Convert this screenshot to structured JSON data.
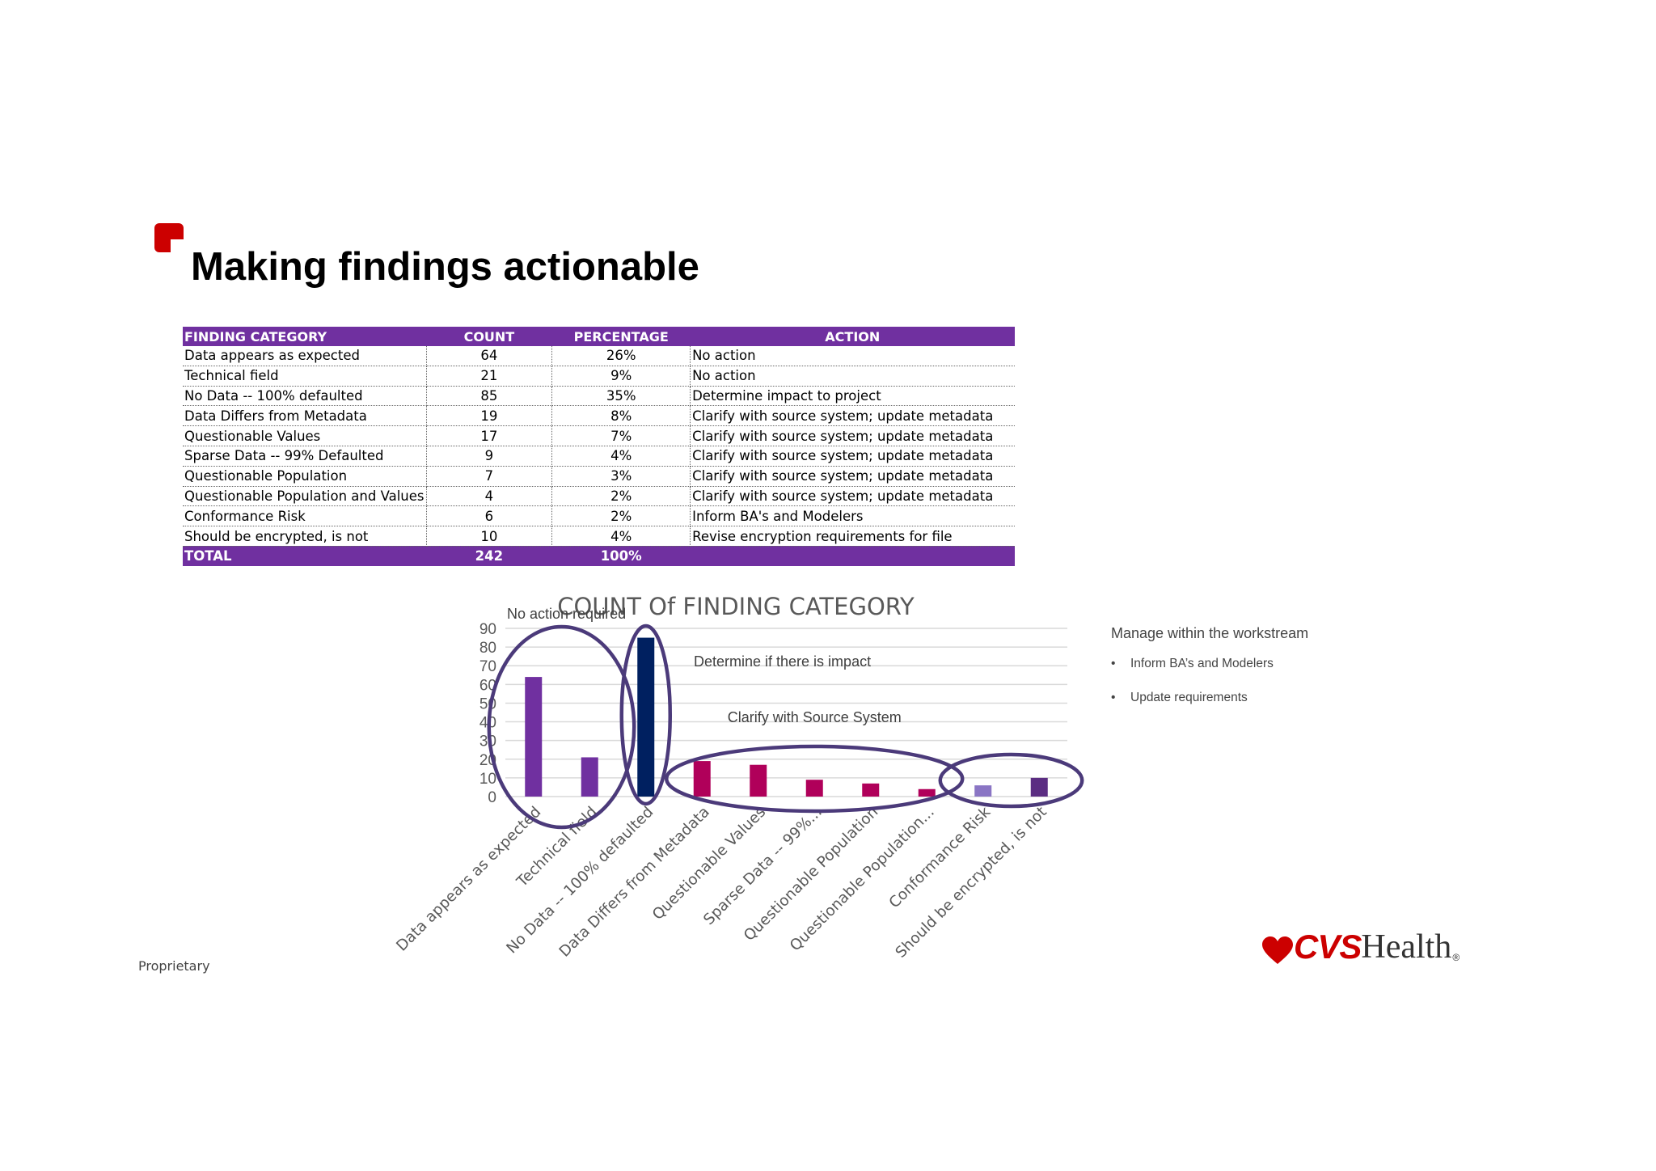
{
  "page": {
    "title": "Making findings actionable",
    "footer": "Proprietary",
    "logo": {
      "brand": "CVS",
      "suffix": "Health",
      "mark": "®",
      "brand_color": "#cc0000"
    }
  },
  "colors": {
    "accent": "#7030a0",
    "annotation_ring": "#4b3a7a"
  },
  "table": {
    "headers": [
      "FINDING CATEGORY",
      "COUNT",
      "PERCENTAGE",
      "ACTION"
    ],
    "rows": [
      [
        "Data appears as expected",
        "64",
        "26%",
        "No action"
      ],
      [
        "Technical field",
        "21",
        "9%",
        "No action"
      ],
      [
        "No Data -- 100% defaulted",
        "85",
        "35%",
        "Determine impact to project"
      ],
      [
        "Data Differs from Metadata",
        "19",
        "8%",
        "Clarify with source system; update metadata"
      ],
      [
        "Questionable Values",
        "17",
        "7%",
        "Clarify with source system; update metadata"
      ],
      [
        "Sparse Data -- 99% Defaulted",
        "9",
        "4%",
        "Clarify with source system; update metadata"
      ],
      [
        "Questionable Population",
        "7",
        "3%",
        "Clarify with source system; update metadata"
      ],
      [
        "Questionable Population and Values",
        "4",
        "2%",
        "Clarify with source system; update metadata"
      ],
      [
        "Conformance Risk",
        "6",
        "2%",
        "Inform BA's and Modelers"
      ],
      [
        "Should be encrypted, is not",
        "10",
        "4%",
        "Revise encryption requirements for file"
      ]
    ],
    "total": [
      "TOTAL",
      "242",
      "100%",
      ""
    ]
  },
  "notes": {
    "heading": "Manage within the workstream",
    "bullet_glyph": "•",
    "items": [
      "Inform BA’s and Modelers",
      "Update requirements"
    ]
  },
  "chart_data": {
    "type": "bar",
    "title": "COUNT Of FINDING CATEGORY",
    "categories": [
      "Data appears as expected",
      "Technical field",
      "No Data -- 100% defaulted",
      "Data Differs from Metadata",
      "Questionable Values",
      "Sparse Data -- 99%...",
      "Questionable Population",
      "Questionable Population...",
      "Conformance Risk",
      "Should be encrypted, is not"
    ],
    "values": [
      64,
      21,
      85,
      19,
      17,
      9,
      7,
      4,
      6,
      10
    ],
    "bar_colors": [
      "#7030a0",
      "#7030a0",
      "#002060",
      "#b0005a",
      "#b0005a",
      "#b0005a",
      "#b0005a",
      "#b0005a",
      "#8a75c4",
      "#5b2d82"
    ],
    "ylim": [
      0,
      90
    ],
    "yticks": [
      "0",
      "10",
      "20",
      "30",
      "40",
      "50",
      "60",
      "70",
      "80",
      "90"
    ],
    "grid": true,
    "legend": "none",
    "annotations": [
      {
        "text": "No action required",
        "group": [
          0,
          1
        ]
      },
      {
        "text": "Determine if there is impact",
        "group": [
          2
        ]
      },
      {
        "text": "Clarify with Source System",
        "group": [
          3,
          4,
          5,
          6,
          7
        ]
      },
      {
        "text": "",
        "group": [
          8,
          9
        ]
      }
    ]
  }
}
